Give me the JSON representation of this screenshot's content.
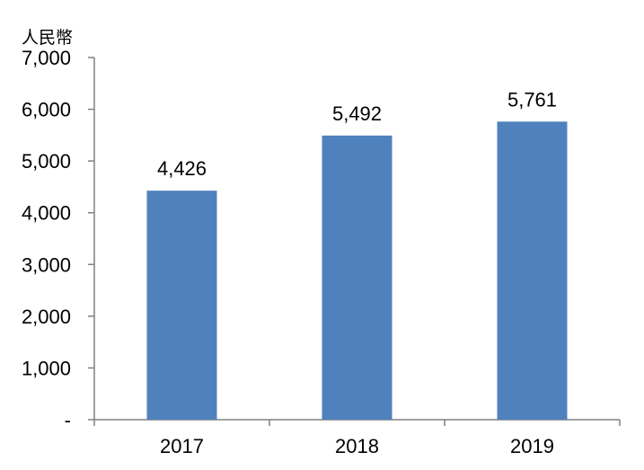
{
  "chart_data": {
    "type": "bar",
    "title": "",
    "xlabel": "",
    "ylabel": "",
    "unit": "人民幣",
    "categories": [
      "2017",
      "2018",
      "2019"
    ],
    "values": [
      4426,
      5492,
      5761
    ],
    "data_labels": [
      "4,426",
      "5,492",
      "5,761"
    ],
    "ylim": [
      0,
      7000
    ],
    "yticks": [
      0,
      1000,
      2000,
      3000,
      4000,
      5000,
      6000,
      7000
    ],
    "ytick_labels": [
      "-",
      "1,000",
      "2,000",
      "3,000",
      "4,000",
      "5,000",
      "6,000",
      "7,000"
    ],
    "grid": false,
    "legend": "none",
    "bar_color": "#4F81BD",
    "axis_color": "#808080"
  }
}
